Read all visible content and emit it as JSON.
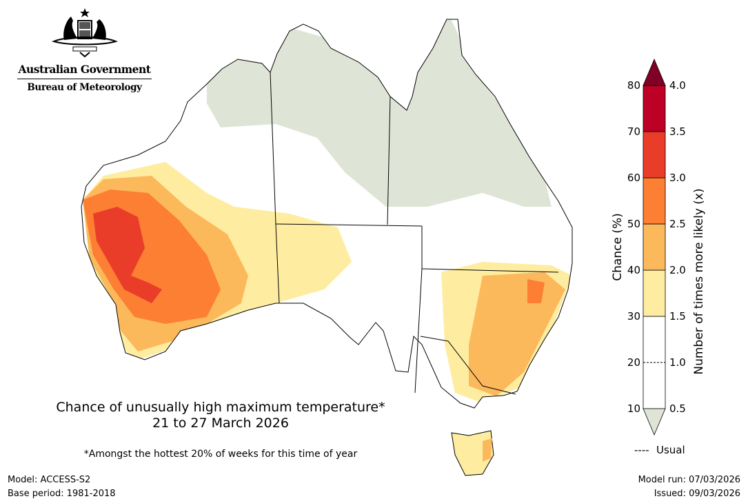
{
  "logo": {
    "government": "Australian Government",
    "agency": "Bureau of Meteorology",
    "emblem": "commonwealth-coat-of-arms"
  },
  "map": {
    "title_line1": "Chance of unusually high maximum temperature*",
    "title_line2": "21 to 27 March 2026",
    "footnote": "*Amongst the hottest 20% of weeks for this time of year"
  },
  "colorbar": {
    "left_label": "Chance (%)",
    "right_label": "Number of times more likely (x)",
    "left_ticks": [
      "10",
      "20",
      "30",
      "40",
      "50",
      "60",
      "70",
      "80"
    ],
    "right_ticks": [
      "0.5",
      "1.0",
      "1.5",
      "2.0",
      "2.5",
      "3.0",
      "3.5",
      "4.0"
    ],
    "bins": [
      {
        "from": 10,
        "to": 30,
        "color": "#ffffff"
      },
      {
        "from": 30,
        "to": 40,
        "color": "#feeda0"
      },
      {
        "from": 40,
        "to": 50,
        "color": "#fcb95c"
      },
      {
        "from": 50,
        "to": 60,
        "color": "#fc7f34"
      },
      {
        "from": 60,
        "to": 70,
        "color": "#ea3d29"
      },
      {
        "from": 70,
        "to": 80,
        "color": "#bc0026"
      }
    ],
    "over_color": "#800026",
    "under_color": "#dfe5d6",
    "usual_value": 20,
    "usual_label": "Usual",
    "usual_marker": "----"
  },
  "footer": {
    "model": "Model: ACCESS-S2",
    "base_period": "Base period: 1981-2018",
    "model_run": "Model run: 07/03/2026",
    "issued": "Issued: 09/03/2026"
  }
}
